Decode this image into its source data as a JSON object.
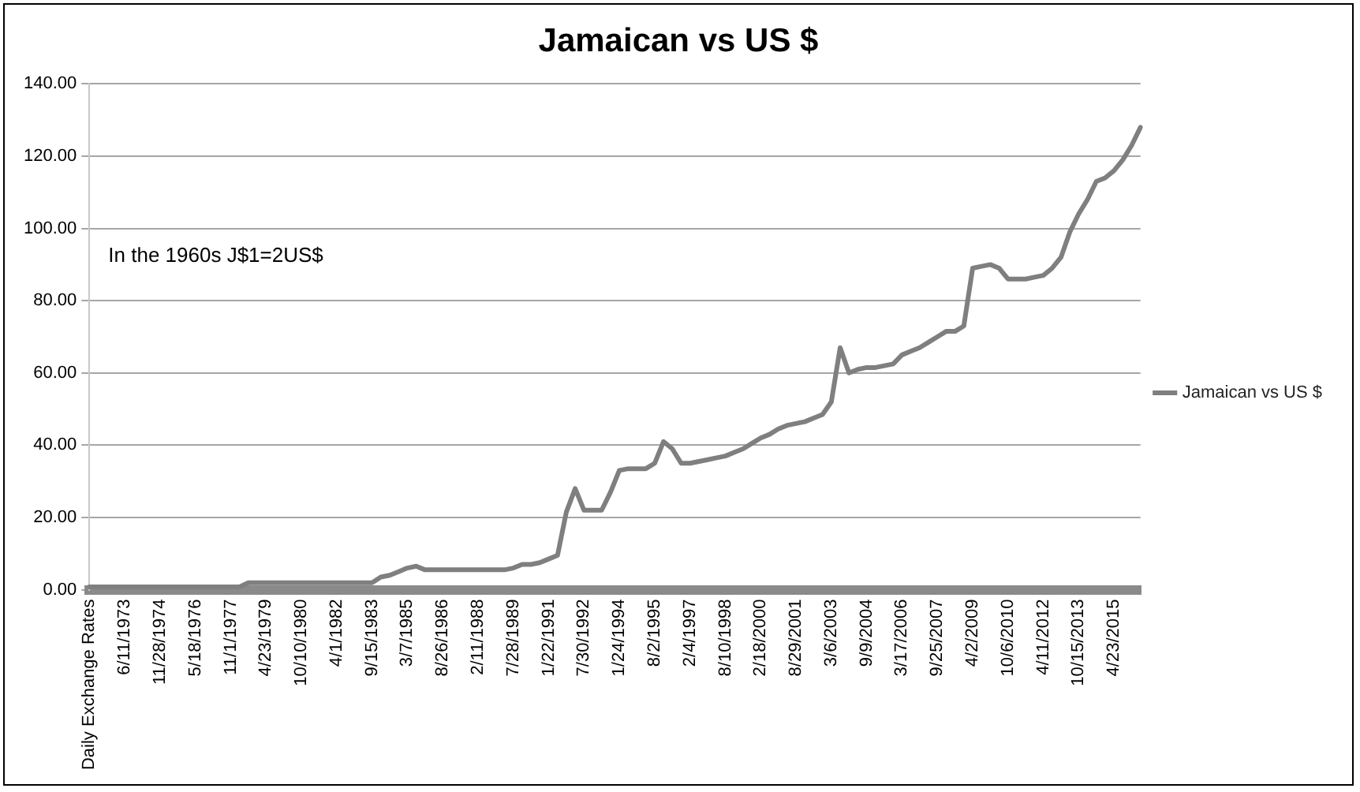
{
  "chart_data": {
    "type": "line",
    "title": "Jamaican vs US $",
    "categories": [
      "Daily Exchange Rates",
      null,
      null,
      null,
      "6/11/1973",
      null,
      null,
      null,
      "11/28/1974",
      null,
      null,
      null,
      "5/18/1976",
      null,
      null,
      null,
      "11/1/1977",
      null,
      null,
      null,
      "4/23/1979",
      null,
      null,
      null,
      "10/10/1980",
      null,
      null,
      null,
      "4/1/1982",
      null,
      null,
      null,
      "9/15/1983",
      null,
      null,
      null,
      "3/7/1985",
      null,
      null,
      null,
      "8/26/1986",
      null,
      null,
      null,
      "2/11/1988",
      null,
      null,
      null,
      "7/28/1989",
      null,
      null,
      null,
      "1/22/1991",
      null,
      null,
      null,
      "7/30/1992",
      null,
      null,
      null,
      "1/24/1994",
      null,
      null,
      null,
      "8/2/1995",
      null,
      null,
      null,
      "2/4/1997",
      null,
      null,
      null,
      "8/10/1998",
      null,
      null,
      null,
      "2/18/2000",
      null,
      null,
      null,
      "8/29/2001",
      null,
      null,
      null,
      "3/6/2003",
      null,
      null,
      null,
      "9/9/2004",
      null,
      null,
      null,
      "3/17/2006",
      null,
      null,
      null,
      "9/25/2007",
      null,
      null,
      null,
      "4/2/2009",
      null,
      null,
      null,
      "10/6/2010",
      null,
      null,
      null,
      "4/11/2012",
      null,
      null,
      null,
      "10/15/2013",
      null,
      null,
      null,
      "4/23/2015",
      null,
      null,
      null
    ],
    "series": [
      {
        "name": "Jamaican vs US $",
        "color": "#7f7f7f",
        "values": [
          0.8,
          0.8,
          0.8,
          0.8,
          0.8,
          0.8,
          0.8,
          0.8,
          0.8,
          0.8,
          0.8,
          0.8,
          0.8,
          0.8,
          0.8,
          0.8,
          0.8,
          0.8,
          1.9,
          1.9,
          1.9,
          1.9,
          1.9,
          1.9,
          1.9,
          1.9,
          1.9,
          1.9,
          1.9,
          1.9,
          1.9,
          1.9,
          1.9,
          3.5,
          4,
          5,
          6,
          6.5,
          5.5,
          5.5,
          5.5,
          5.5,
          5.5,
          5.5,
          5.5,
          5.5,
          5.5,
          5.5,
          6,
          7,
          7,
          7.5,
          8.5,
          9.5,
          21.5,
          28,
          22,
          22,
          22,
          27,
          33,
          33.5,
          33.5,
          33.5,
          35,
          41,
          39,
          35,
          35,
          35.5,
          36,
          36.5,
          37,
          38,
          39,
          40.5,
          42,
          43,
          44.5,
          45.5,
          46,
          46.5,
          47.5,
          48.5,
          52,
          67,
          60,
          61,
          61.5,
          61.5,
          62,
          62.5,
          65,
          66,
          67,
          68.5,
          70,
          71.5,
          71.5,
          73,
          89,
          89.5,
          90,
          89,
          86,
          86,
          86,
          86.5,
          87,
          89,
          92,
          99,
          104,
          108,
          113,
          114,
          116,
          119,
          123,
          128
        ]
      }
    ],
    "ylim": [
      0,
      140
    ],
    "yticks": [
      {
        "value": 0,
        "label": "0.00"
      },
      {
        "value": 20,
        "label": "20.00"
      },
      {
        "value": 40,
        "label": "40.00"
      },
      {
        "value": 60,
        "label": "60.00"
      },
      {
        "value": 80,
        "label": "80.00"
      },
      {
        "value": 100,
        "label": "100.00"
      },
      {
        "value": 120,
        "label": "120.00"
      },
      {
        "value": 140,
        "label": "140.00"
      }
    ],
    "grid": "y",
    "legend": "right",
    "marker": "none",
    "line_style": "solid",
    "annotations": [
      "In the 1960s J$1=2US$"
    ]
  }
}
